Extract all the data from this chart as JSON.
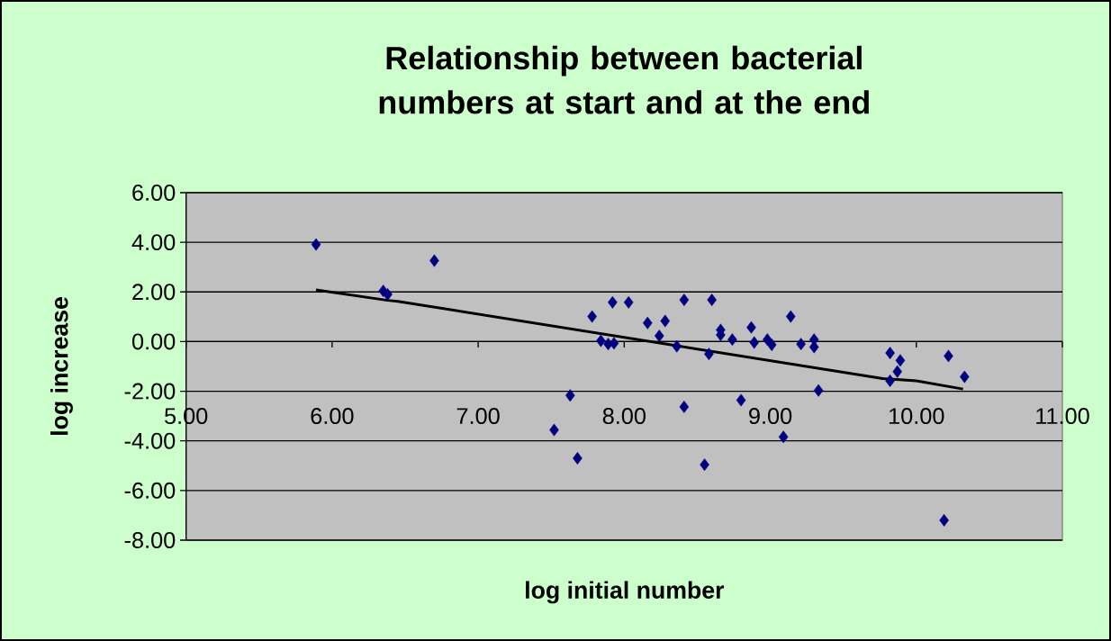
{
  "chart_data": {
    "type": "scatter",
    "title": "Relationship between bacterial numbers at start and at the end",
    "xlabel": "log initial number",
    "ylabel": "log increase",
    "xlim": [
      5,
      11
    ],
    "xticks": [
      {
        "value": 5,
        "label": "5.00"
      },
      {
        "value": 6,
        "label": "6.00"
      },
      {
        "value": 7,
        "label": "7.00"
      },
      {
        "value": 8,
        "label": "8.00"
      },
      {
        "value": 9,
        "label": "9.00"
      },
      {
        "value": 10,
        "label": "10.00"
      },
      {
        "value": 11,
        "label": "11.00"
      }
    ],
    "ylim": [
      -8,
      6
    ],
    "yticks": [
      {
        "value": -8,
        "label": "-8.00"
      },
      {
        "value": -6,
        "label": "-6.00"
      },
      {
        "value": -4,
        "label": "-4.00"
      },
      {
        "value": -2,
        "label": "-2.00"
      },
      {
        "value": 0,
        "label": "0.00"
      },
      {
        "value": 2,
        "label": "2.00"
      },
      {
        "value": 4,
        "label": "4.00"
      },
      {
        "value": 6,
        "label": "6.00"
      }
    ],
    "grid": "y",
    "series": [
      {
        "type": "scatter",
        "marker": "diamond",
        "color": "#000080",
        "x": [
          5.89,
          6.35,
          6.38,
          6.7,
          7.78,
          7.92,
          8.03,
          7.84,
          7.89,
          7.93,
          7.63,
          7.52,
          7.68,
          8.16,
          8.28,
          8.24,
          8.41,
          8.36,
          8.6,
          8.58,
          8.41,
          8.55,
          8.66,
          8.66,
          8.74,
          8.87,
          8.89,
          8.8,
          8.98,
          9.01,
          9.14,
          9.09,
          9.21,
          9.3,
          9.3,
          9.33,
          9.82,
          9.89,
          9.87,
          9.82,
          10.22,
          10.33,
          10.19
        ],
        "values": [
          3.91,
          2.04,
          1.9,
          3.26,
          1.01,
          1.58,
          1.58,
          0.03,
          -0.1,
          -0.07,
          -2.17,
          -3.56,
          -4.7,
          0.75,
          0.83,
          0.23,
          1.68,
          -0.19,
          1.68,
          -0.5,
          -2.63,
          -4.96,
          0.47,
          0.27,
          0.08,
          0.57,
          -0.04,
          -2.36,
          0.08,
          -0.13,
          1.01,
          -3.84,
          -0.1,
          0.08,
          -0.22,
          -1.97,
          -0.46,
          -0.76,
          -1.21,
          -1.58,
          -0.58,
          -1.42,
          -7.2
        ]
      },
      {
        "type": "line",
        "color": "#000000",
        "x": [
          5.89,
          6.38,
          6.45,
          9.77,
          10.0,
          10.32
        ],
        "values": [
          2.08,
          1.66,
          1.62,
          -1.49,
          -1.58,
          -1.91
        ]
      }
    ]
  }
}
